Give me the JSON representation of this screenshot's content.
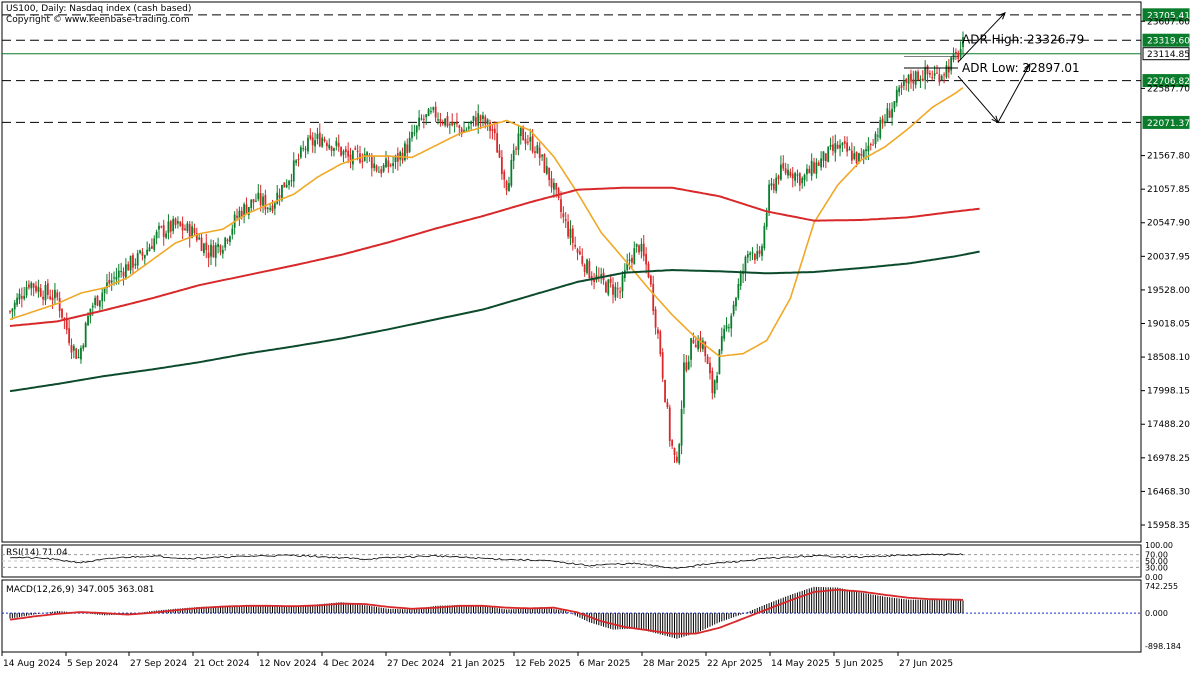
{
  "header": {
    "title": "US100, Daily:  Nasdaq index (cash based)",
    "copyright": "Copyright © www.keenbase-trading.com"
  },
  "colors": {
    "bull": "#0a7d2c",
    "bear": "#d8282a",
    "ma20": "#f0a826",
    "ma100": "#d8282a",
    "ma200": "#0c4a2c",
    "grid": "#000000",
    "label_bg": "#0a7d2c",
    "current_label_bg": "#ffffff",
    "macd_signal": "#d8282a",
    "macd_zero": "#1c2ec8"
  },
  "chart_data": [
    {
      "type": "candlestick",
      "title": "US100, Daily:  Nasdaq index (cash based)",
      "ylim": [
        15700,
        23900
      ],
      "x_ticks": [
        "14 Aug 2024",
        "5 Sep 2024",
        "27 Sep 2024",
        "21 Oct 2024",
        "12 Nov 2024",
        "4 Dec 2024",
        "27 Dec 2024",
        "21 Jan 2025",
        "12 Feb 2025",
        "6 Mar 2025",
        "28 Mar 2025",
        "22 Apr 2025",
        "14 May 2025",
        "5 Jun 2025",
        "27 Jun 2025"
      ],
      "y_ticks": [
        15958.35,
        16468.3,
        16978.25,
        17488.2,
        17998.15,
        18508.1,
        19018.05,
        19528.0,
        20037.95,
        20547.9,
        21057.85,
        21567.8,
        22587.7,
        23607.6
      ],
      "price_path": [
        [
          0,
          19200
        ],
        [
          8,
          19650
        ],
        [
          14,
          19500
        ],
        [
          20,
          19400
        ],
        [
          26,
          18700
        ],
        [
          29,
          18500
        ],
        [
          34,
          19250
        ],
        [
          41,
          19600
        ],
        [
          48,
          19850
        ],
        [
          56,
          20050
        ],
        [
          63,
          20400
        ],
        [
          70,
          20500
        ],
        [
          78,
          20400
        ],
        [
          84,
          20100
        ],
        [
          90,
          20250
        ],
        [
          97,
          20700
        ],
        [
          104,
          20900
        ],
        [
          110,
          20800
        ],
        [
          118,
          21250
        ],
        [
          125,
          21700
        ],
        [
          132,
          21850
        ],
        [
          138,
          21700
        ],
        [
          144,
          21500
        ],
        [
          150,
          21600
        ],
        [
          156,
          21350
        ],
        [
          162,
          21450
        ],
        [
          168,
          21700
        ],
        [
          174,
          22100
        ],
        [
          180,
          22200
        ],
        [
          186,
          22050
        ],
        [
          192,
          21950
        ],
        [
          198,
          22150
        ],
        [
          204,
          21950
        ],
        [
          210,
          21150
        ],
        [
          216,
          21900
        ],
        [
          222,
          21700
        ],
        [
          228,
          21250
        ],
        [
          234,
          20600
        ],
        [
          240,
          20100
        ],
        [
          246,
          19750
        ],
        [
          252,
          19600
        ],
        [
          258,
          19500
        ],
        [
          262,
          20000
        ],
        [
          266,
          20200
        ],
        [
          270,
          19800
        ],
        [
          275,
          18600
        ],
        [
          279,
          17300
        ],
        [
          282,
          16800
        ],
        [
          285,
          18300
        ],
        [
          289,
          18800
        ],
        [
          293,
          18700
        ],
        [
          297,
          18000
        ],
        [
          301,
          18700
        ],
        [
          305,
          19200
        ],
        [
          309,
          19700
        ],
        [
          313,
          20200
        ],
        [
          317,
          19950
        ],
        [
          321,
          21000
        ],
        [
          325,
          21300
        ],
        [
          330,
          21350
        ],
        [
          335,
          21200
        ],
        [
          340,
          21400
        ],
        [
          345,
          21550
        ],
        [
          350,
          21700
        ],
        [
          355,
          21600
        ],
        [
          360,
          21500
        ],
        [
          364,
          21800
        ],
        [
          368,
          22000
        ],
        [
          372,
          22250
        ],
        [
          376,
          22500
        ],
        [
          380,
          22700
        ],
        [
          384,
          22800
        ],
        [
          388,
          22800
        ],
        [
          392,
          22780
        ],
        [
          396,
          22900
        ],
        [
          400,
          23050
        ],
        [
          403,
          23250
        ]
      ],
      "series": [
        {
          "name": "MA20",
          "points": [
            [
              0,
              19080
            ],
            [
              10,
              19200
            ],
            [
              20,
              19320
            ],
            [
              30,
              19480
            ],
            [
              40,
              19560
            ],
            [
              50,
              19720
            ],
            [
              60,
              19980
            ],
            [
              70,
              20240
            ],
            [
              80,
              20380
            ],
            [
              90,
              20450
            ],
            [
              100,
              20680
            ],
            [
              110,
              20840
            ],
            [
              120,
              20980
            ],
            [
              130,
              21240
            ],
            [
              140,
              21440
            ],
            [
              150,
              21560
            ],
            [
              160,
              21560
            ],
            [
              170,
              21540
            ],
            [
              180,
              21720
            ],
            [
              190,
              21900
            ],
            [
              200,
              22000
            ],
            [
              210,
              22100
            ],
            [
              220,
              21950
            ],
            [
              230,
              21550
            ],
            [
              240,
              21000
            ],
            [
              250,
              20400
            ],
            [
              260,
              19980
            ],
            [
              270,
              19550
            ],
            [
              280,
              19150
            ],
            [
              290,
              18800
            ],
            [
              300,
              18520
            ],
            [
              310,
              18560
            ],
            [
              320,
              18760
            ],
            [
              330,
              19400
            ],
            [
              340,
              20550
            ],
            [
              350,
              21120
            ],
            [
              360,
              21500
            ],
            [
              370,
              21700
            ],
            [
              380,
              21980
            ],
            [
              390,
              22300
            ],
            [
              400,
              22520
            ],
            [
              403,
              22600
            ]
          ]
        },
        {
          "name": "MA100",
          "points": [
            [
              0,
              18980
            ],
            [
              20,
              19050
            ],
            [
              40,
              19220
            ],
            [
              60,
              19400
            ],
            [
              80,
              19600
            ],
            [
              100,
              19750
            ],
            [
              120,
              19900
            ],
            [
              140,
              20060
            ],
            [
              160,
              20250
            ],
            [
              180,
              20460
            ],
            [
              200,
              20650
            ],
            [
              220,
              20860
            ],
            [
              240,
              21050
            ],
            [
              260,
              21080
            ],
            [
              280,
              21080
            ],
            [
              300,
              20950
            ],
            [
              320,
              20720
            ],
            [
              340,
              20580
            ],
            [
              360,
              20590
            ],
            [
              380,
              20630
            ],
            [
              400,
              20720
            ],
            [
              410,
              20760
            ]
          ]
        },
        {
          "name": "MA200",
          "points": [
            [
              0,
              17990
            ],
            [
              20,
              18100
            ],
            [
              40,
              18220
            ],
            [
              60,
              18320
            ],
            [
              80,
              18430
            ],
            [
              100,
              18560
            ],
            [
              120,
              18670
            ],
            [
              140,
              18790
            ],
            [
              160,
              18930
            ],
            [
              180,
              19080
            ],
            [
              200,
              19230
            ],
            [
              220,
              19440
            ],
            [
              240,
              19650
            ],
            [
              260,
              19790
            ],
            [
              280,
              19830
            ],
            [
              300,
              19810
            ],
            [
              320,
              19780
            ],
            [
              340,
              19800
            ],
            [
              360,
              19860
            ],
            [
              380,
              19930
            ],
            [
              400,
              20040
            ],
            [
              410,
              20110
            ]
          ]
        }
      ],
      "horizontal_levels": [
        {
          "value": 23705.41,
          "label": "23705.41",
          "style": "dashed"
        },
        {
          "value": 23319.6,
          "label": "23319.60",
          "style": "dashed"
        },
        {
          "value": 23114.85,
          "label": "23114.85",
          "style": "solid"
        },
        {
          "value": 22706.82,
          "label": "22706.82",
          "style": "dashed"
        },
        {
          "value": 22071.37,
          "label": "22071.37",
          "style": "dashed"
        }
      ],
      "annotations": [
        {
          "text": "ADR High: 23326.79"
        },
        {
          "text": "ADR Low: 22897.01"
        }
      ]
    },
    {
      "type": "line",
      "title": "RSI(14) 71.04",
      "ylim": [
        0,
        100
      ],
      "y_ticks": [
        "100.00",
        "70.00",
        "50.00",
        "30.00",
        "0.00"
      ],
      "series": [
        {
          "name": "RSI(14)",
          "points": [
            [
              0,
              62
            ],
            [
              15,
              58
            ],
            [
              30,
              45
            ],
            [
              45,
              60
            ],
            [
              60,
              66
            ],
            [
              75,
              58
            ],
            [
              90,
              62
            ],
            [
              105,
              66
            ],
            [
              120,
              68
            ],
            [
              135,
              62
            ],
            [
              150,
              56
            ],
            [
              165,
              62
            ],
            [
              180,
              66
            ],
            [
              195,
              60
            ],
            [
              210,
              55
            ],
            [
              225,
              52
            ],
            [
              235,
              44
            ],
            [
              245,
              36
            ],
            [
              255,
              40
            ],
            [
              265,
              42
            ],
            [
              275,
              32
            ],
            [
              282,
              28
            ],
            [
              290,
              36
            ],
            [
              300,
              44
            ],
            [
              310,
              50
            ],
            [
              320,
              58
            ],
            [
              330,
              62
            ],
            [
              340,
              66
            ],
            [
              350,
              64
            ],
            [
              360,
              62
            ],
            [
              370,
              66
            ],
            [
              380,
              68
            ],
            [
              390,
              70
            ],
            [
              400,
              70
            ],
            [
              403,
              71.04
            ]
          ]
        }
      ]
    },
    {
      "type": "bar",
      "title": "MACD(12,26,9) 347.005 363.081",
      "ylim": [
        -898.184,
        742.255
      ],
      "y_ticks": [
        "742.255",
        "0.000",
        "-898.184"
      ],
      "macd_hist": [
        [
          0,
          -150
        ],
        [
          10,
          -40
        ],
        [
          20,
          60
        ],
        [
          30,
          10
        ],
        [
          40,
          -60
        ],
        [
          50,
          -30
        ],
        [
          60,
          60
        ],
        [
          70,
          120
        ],
        [
          80,
          170
        ],
        [
          90,
          200
        ],
        [
          100,
          210
        ],
        [
          110,
          190
        ],
        [
          120,
          190
        ],
        [
          130,
          240
        ],
        [
          140,
          300
        ],
        [
          150,
          220
        ],
        [
          160,
          120
        ],
        [
          170,
          100
        ],
        [
          180,
          200
        ],
        [
          190,
          220
        ],
        [
          200,
          200
        ],
        [
          210,
          100
        ],
        [
          220,
          130
        ],
        [
          225,
          170
        ],
        [
          235,
          60
        ],
        [
          245,
          -250
        ],
        [
          255,
          -450
        ],
        [
          265,
          -420
        ],
        [
          275,
          -580
        ],
        [
          282,
          -700
        ],
        [
          290,
          -550
        ],
        [
          300,
          -250
        ],
        [
          310,
          -20
        ],
        [
          320,
          250
        ],
        [
          330,
          500
        ],
        [
          340,
          720
        ],
        [
          350,
          700
        ],
        [
          360,
          560
        ],
        [
          370,
          450
        ],
        [
          380,
          370
        ],
        [
          390,
          360
        ],
        [
          400,
          350
        ],
        [
          403,
          347
        ]
      ],
      "series": [
        {
          "name": "Signal",
          "points": [
            [
              0,
              -180
            ],
            [
              10,
              -90
            ],
            [
              20,
              -20
            ],
            [
              30,
              30
            ],
            [
              40,
              0
            ],
            [
              50,
              -40
            ],
            [
              60,
              10
            ],
            [
              70,
              80
            ],
            [
              80,
              140
            ],
            [
              90,
              180
            ],
            [
              100,
              200
            ],
            [
              110,
              200
            ],
            [
              120,
              190
            ],
            [
              130,
              210
            ],
            [
              140,
              260
            ],
            [
              150,
              250
            ],
            [
              160,
              170
            ],
            [
              170,
              120
            ],
            [
              180,
              150
            ],
            [
              190,
              200
            ],
            [
              200,
              200
            ],
            [
              210,
              150
            ],
            [
              220,
              130
            ],
            [
              230,
              150
            ],
            [
              240,
              20
            ],
            [
              250,
              -220
            ],
            [
              260,
              -380
            ],
            [
              270,
              -470
            ],
            [
              280,
              -560
            ],
            [
              290,
              -560
            ],
            [
              300,
              -400
            ],
            [
              310,
              -150
            ],
            [
              320,
              100
            ],
            [
              330,
              350
            ],
            [
              340,
              580
            ],
            [
              350,
              640
            ],
            [
              360,
              590
            ],
            [
              370,
              500
            ],
            [
              380,
              420
            ],
            [
              390,
              380
            ],
            [
              400,
              370
            ],
            [
              403,
              363
            ]
          ]
        }
      ]
    }
  ]
}
